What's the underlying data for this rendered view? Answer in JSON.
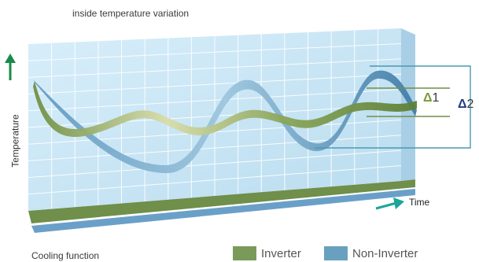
{
  "title": "inside temperature variation",
  "function_label": "Cooling function",
  "y_axis_label": "Temperature",
  "x_axis_label": "Time",
  "legend": [
    {
      "label": "Inverter",
      "color": "#7a9a5a"
    },
    {
      "label": "Non-Inverter",
      "color": "#6aa0bf"
    }
  ],
  "delta_labels": {
    "inverter": {
      "symbol": "Δ",
      "index": "1"
    },
    "non_inverter": {
      "symbol": "Δ",
      "index": "2"
    }
  },
  "colors": {
    "grid_fill": "#c7e3f3",
    "grid_line": "#ffffff",
    "floor_green": "#6f8f4a",
    "floor_blue": "#6aa0c8",
    "arrow_green": "#1a8a4a",
    "arrow_teal": "#1aa79a"
  }
}
